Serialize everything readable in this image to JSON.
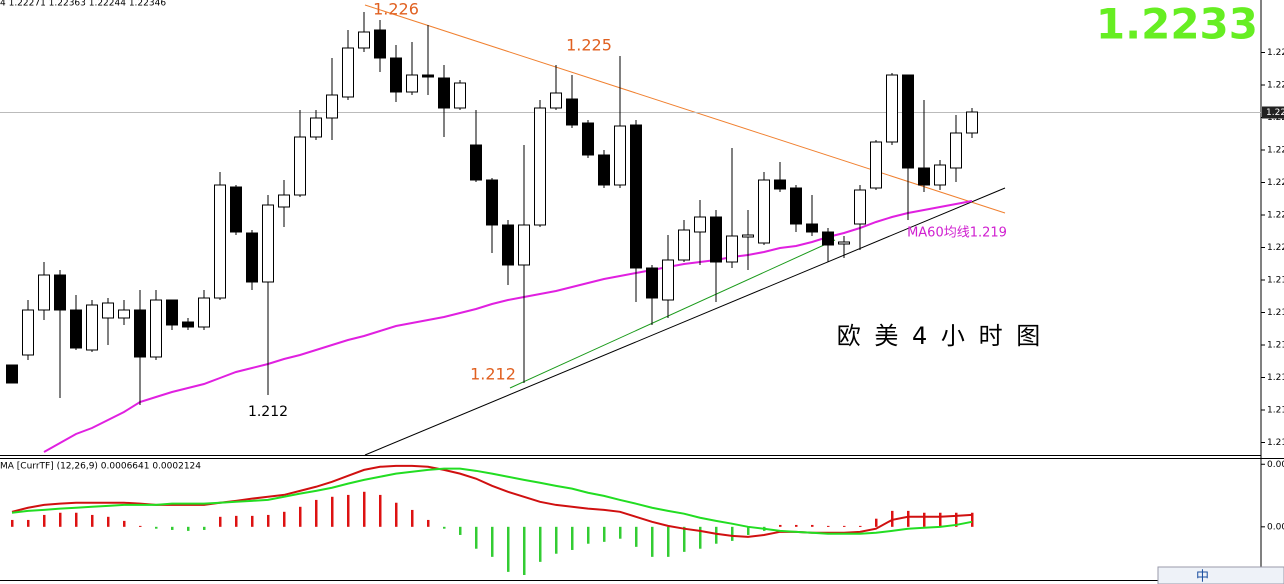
{
  "chart_data": [
    {
      "type": "candlestick",
      "header": "4  1.22271 1.22363 1.22244 1.22346",
      "big_price": "1.2233",
      "annotations": [
        "1.226",
        "1.225",
        "1.212",
        "1.212",
        "MA60均线1.219",
        "欧 美 4 小 时 图"
      ],
      "categories": [
        null,
        null,
        null,
        null,
        null,
        null,
        null,
        null,
        null,
        null,
        null,
        null,
        null,
        null,
        null,
        null,
        null,
        null,
        null,
        null,
        null,
        null,
        null,
        null,
        null,
        null,
        null,
        null,
        null,
        null,
        null,
        null,
        null,
        null,
        null,
        null,
        null,
        null,
        null,
        null,
        null,
        null,
        null,
        null,
        null,
        null,
        null,
        null,
        null,
        null,
        null,
        null,
        null,
        null,
        null,
        null,
        null,
        null,
        null,
        null,
        null
      ],
      "open": [
        1.2104,
        1.2108,
        1.2126,
        1.214,
        1.2126,
        1.211,
        1.21228,
        1.21228,
        1.2126,
        1.21072,
        1.213,
        1.21212,
        1.21192,
        1.21308,
        1.21752,
        1.21568,
        1.21372,
        1.21672,
        1.2172,
        1.21952,
        1.22028,
        1.22112,
        1.22308,
        1.2238,
        1.22268,
        1.22132,
        1.222,
        1.22188,
        1.22068,
        1.2192,
        1.2178,
        1.216,
        1.2144,
        1.216,
        1.22068,
        1.22104,
        1.22008,
        1.2188,
        1.2176,
        1.22,
        1.21428,
        1.213,
        1.2146,
        1.21572,
        1.21632,
        1.21452,
        1.21552,
        1.21528,
        1.2178,
        1.21748,
        1.21604,
        1.21572,
        1.21524,
        1.21604,
        1.21748,
        1.21932,
        1.222,
        1.21828,
        1.2176,
        1.21828,
        1.21968
      ],
      "high": [
        1.2104,
        1.213,
        1.21452,
        1.2142,
        1.2132,
        1.213,
        1.21308,
        1.213,
        1.2134,
        1.2134,
        1.213,
        1.21228,
        1.2134,
        1.21812,
        1.2176,
        1.2158,
        1.2172,
        1.2178,
        1.2206,
        1.2206,
        1.22268,
        1.2238,
        1.22452,
        1.2242,
        1.2232,
        1.22332,
        1.224,
        1.2224,
        1.2218,
        1.2206,
        1.21788,
        1.2162,
        1.2192,
        1.221,
        1.2224,
        1.222,
        1.2202,
        1.219,
        1.22276,
        1.2202,
        1.2144,
        1.2156,
        1.2162,
        1.217,
        1.2166,
        1.21908,
        1.2166,
        1.21812,
        1.21852,
        1.2176,
        1.2172,
        1.21588,
        1.21556,
        1.2176,
        1.2194,
        1.22208,
        1.222,
        1.221,
        1.2186,
        1.2204,
        1.22068
      ],
      "low": [
        1.20968,
        1.2106,
        1.2122,
        1.20908,
        1.211,
        1.21092,
        1.2112,
        1.212,
        1.2088,
        1.2106,
        1.2118,
        1.2118,
        1.2118,
        1.213,
        1.2156,
        1.2134,
        1.2092,
        1.21592,
        1.21712,
        1.2194,
        1.2194,
        1.221,
        1.22292,
        1.22212,
        1.22092,
        1.2212,
        1.2212,
        1.21952,
        1.2206,
        1.21772,
        1.21488,
        1.2136,
        1.20968,
        1.21592,
        1.2206,
        1.21988,
        1.21868,
        1.21748,
        1.21748,
        1.21292,
        1.212,
        1.21228,
        1.21452,
        1.2144,
        1.21292,
        1.21428,
        1.2142,
        1.2152,
        1.21732,
        1.21572,
        1.21556,
        1.21452,
        1.21468,
        1.215,
        1.2174,
        1.2192,
        1.2162,
        1.21732,
        1.2174,
        1.21772,
        1.21948
      ],
      "close": [
        1.20968,
        1.2126,
        1.214,
        1.2126,
        1.21108,
        1.2128,
        1.21288,
        1.2126,
        1.21072,
        1.213,
        1.212,
        1.21192,
        1.21308,
        1.2176,
        1.21572,
        1.21372,
        1.2168,
        1.2172,
        1.21952,
        1.22028,
        1.2212,
        1.22308,
        1.22372,
        1.22268,
        1.22132,
        1.222,
        1.22192,
        1.22068,
        1.22168,
        1.2178,
        1.216,
        1.2144,
        1.216,
        1.22068,
        1.22128,
        1.22,
        1.2188,
        1.2176,
        1.21996,
        1.21428,
        1.21308,
        1.2146,
        1.2158,
        1.21632,
        1.21452,
        1.21556,
        1.2156,
        1.2178,
        1.21744,
        1.21604,
        1.21572,
        1.2152,
        1.21532,
        1.2174,
        1.21932,
        1.222,
        1.21828,
        1.2176,
        1.2184,
        1.21968,
        1.22052
      ],
      "up_color": "#ffffff",
      "down_color": "#000000",
      "line": {
        "color": "#e020e0",
        "values": [
          null,
          null,
          1.20692,
          1.20728,
          1.20764,
          1.20788,
          1.2082,
          1.20852,
          1.20892,
          1.20912,
          1.20932,
          1.20948,
          1.20964,
          1.20988,
          1.21012,
          1.21028,
          1.21044,
          1.21064,
          1.2108,
          1.211,
          1.2112,
          1.2114,
          1.21156,
          1.21176,
          1.21196,
          1.21208,
          1.2122,
          1.21232,
          1.21248,
          1.21264,
          1.21284,
          1.213,
          1.21312,
          1.21324,
          1.21336,
          1.21352,
          1.21368,
          1.21384,
          1.21396,
          1.21408,
          1.2142,
          1.21432,
          1.21444,
          1.21452,
          1.2146,
          1.21472,
          1.2148,
          1.21492,
          1.21508,
          1.21516,
          1.21532,
          1.21552,
          1.21568,
          1.21588,
          1.21612,
          1.21632,
          1.21648,
          1.2166,
          1.21672,
          1.21684,
          1.21696
        ]
      },
      "price_line": {
        "value": 1.2205,
        "label": "1.22"
      },
      "ylim": [
        1.2068,
        1.225
      ],
      "yticks": [
        {
          "value": 1.2229,
          "label": "1.22"
        },
        {
          "value": 1.2216,
          "label": "1.22"
        },
        {
          "value": 1.2203,
          "label": "1.22"
        },
        {
          "value": 1.219,
          "label": "1.22"
        },
        {
          "value": 1.2177,
          "label": "1.22"
        },
        {
          "value": 1.2164,
          "label": "1.22"
        },
        {
          "value": 1.2151,
          "label": "1.22"
        },
        {
          "value": 1.2138,
          "label": "1.21"
        },
        {
          "value": 1.2125,
          "label": "1.21"
        },
        {
          "value": 1.2112,
          "label": "1.21"
        },
        {
          "value": 1.2099,
          "label": "1.21"
        },
        {
          "value": 1.2086,
          "label": "1.21"
        },
        {
          "value": 1.2073,
          "label": "1.21"
        }
      ]
    },
    {
      "type": "macd",
      "title": "MA [CurrTF] (12,26,9) 0.0006641 0.0002124",
      "ime": "中",
      "histogram": {
        "color": "#dd1111",
        "negative_color": "#33cc33",
        "values": [
          0.00022,
          0.00022,
          0.00038,
          0.00045,
          0.00045,
          0.00038,
          0.00032,
          0.00019,
          3e-05,
          -6e-05,
          -0.0001,
          -0.00013,
          -0.0001,
          0.00032,
          0.00035,
          0.00035,
          0.00038,
          0.00048,
          0.00064,
          0.00086,
          0.00096,
          0.00102,
          0.00112,
          0.00102,
          0.00077,
          0.00054,
          0.00022,
          -6e-05,
          -0.00026,
          -0.0007,
          -0.00096,
          -0.00144,
          -0.00154,
          -0.00112,
          -0.00086,
          -0.00074,
          -0.00054,
          -0.00048,
          -0.00038,
          -0.00064,
          -0.00096,
          -0.00096,
          -0.0008,
          -0.0007,
          -0.00054,
          -0.00045,
          -0.00026,
          -0.00013,
          6e-05,
          6e-05,
          6e-05,
          3e-05,
          3e-05,
          3e-05,
          0.00026,
          0.00051,
          0.00051,
          0.00045,
          0.00045,
          0.00045,
          0.00045
        ]
      },
      "lines": [
        {
          "color": "#d01010",
          "values": [
            0.00048,
            0.00061,
            0.0007,
            0.00074,
            0.00077,
            0.00077,
            0.00077,
            0.00077,
            0.00074,
            0.0007,
            0.0007,
            0.0007,
            0.0007,
            0.00077,
            0.00083,
            0.0009,
            0.00096,
            0.00102,
            0.00115,
            0.00128,
            0.00144,
            0.00163,
            0.00182,
            0.00192,
            0.00195,
            0.00195,
            0.00192,
            0.00182,
            0.0017,
            0.00154,
            0.00131,
            0.00112,
            0.00096,
            0.0008,
            0.0007,
            0.00064,
            0.00058,
            0.00054,
            0.00048,
            0.00032,
            0.00016,
            3e-05,
            -6e-05,
            -0.00013,
            -0.00022,
            -0.00029,
            -0.00032,
            -0.00026,
            -0.00016,
            -0.00016,
            -0.00019,
            -0.00019,
            -0.00019,
            -0.00016,
            -6e-05,
            0.00022,
            0.00032,
            0.00032,
            0.00032,
            0.00035,
            0.00038
          ]
        },
        {
          "color": "#22dd22",
          "values": [
            0.00045,
            0.00051,
            0.00054,
            0.00058,
            0.00061,
            0.00064,
            0.00067,
            0.0007,
            0.0007,
            0.0007,
            0.00074,
            0.00074,
            0.00074,
            0.00077,
            0.0008,
            0.00083,
            0.00086,
            0.00096,
            0.00106,
            0.00115,
            0.00125,
            0.00138,
            0.0015,
            0.0016,
            0.0017,
            0.00176,
            0.00182,
            0.00186,
            0.00186,
            0.00179,
            0.0017,
            0.0016,
            0.0015,
            0.00141,
            0.00131,
            0.00122,
            0.00109,
            0.00099,
            0.00086,
            0.00074,
            0.00061,
            0.00051,
            0.00042,
            0.00029,
            0.00019,
            0.0001,
            0,
            -6e-05,
            -0.00013,
            -0.00016,
            -0.00019,
            -0.00022,
            -0.00022,
            -0.00022,
            -0.00019,
            -0.00013,
            -6e-05,
            -3e-05,
            0,
            6e-05,
            0.00016
          ]
        }
      ],
      "ylim": [
        -0.0017,
        0.0022
      ],
      "yticks": [
        {
          "value": 0.002,
          "label": "0.00"
        },
        {
          "value": 0,
          "label": "0.00"
        }
      ]
    }
  ]
}
